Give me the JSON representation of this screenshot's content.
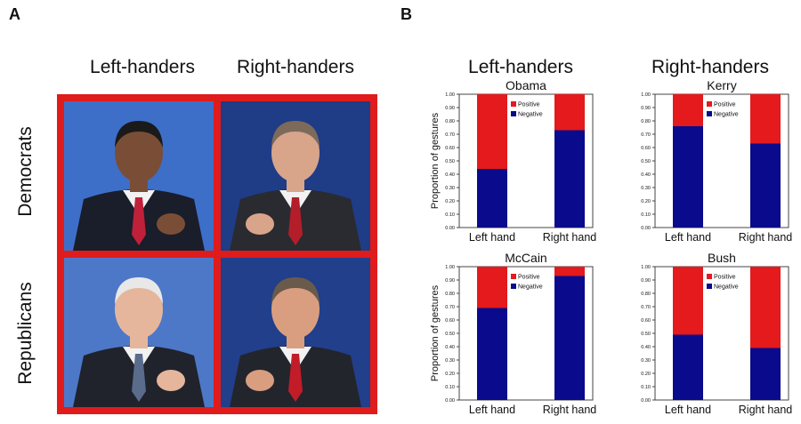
{
  "panel_a": {
    "letter": "A",
    "columns": [
      "Left-handers",
      "Right-handers"
    ],
    "rows": [
      "Democrats",
      "Republicans"
    ],
    "photos": [
      {
        "name": "photo-obama",
        "bg": "#3d6fc9",
        "suit": "#1a1d2a",
        "tie": "#c0203a",
        "skin": "#7a4e36",
        "hair": "#1a1a1a"
      },
      {
        "name": "photo-kerry",
        "bg": "#1f3c86",
        "suit": "#2a2b30",
        "tie": "#b31e2a",
        "skin": "#d8a58a",
        "hair": "#7d6a5a"
      },
      {
        "name": "photo-mccain",
        "bg": "#4d78c8",
        "suit": "#20232c",
        "tie": "#5a6b8c",
        "skin": "#e5b69c",
        "hair": "#e8e8e8"
      },
      {
        "name": "photo-bush",
        "bg": "#213f8a",
        "suit": "#23252d",
        "tie": "#c21c28",
        "skin": "#d99e80",
        "hair": "#6a5a4c"
      }
    ]
  },
  "panel_b": {
    "letter": "B",
    "columns": [
      "Left-handers",
      "Right-handers"
    ]
  },
  "colors": {
    "positive": "#e41a1c",
    "negative": "#0a0a8c",
    "frame": "#e01b1b"
  },
  "chart_data": [
    {
      "type": "bar",
      "stacked": true,
      "title": "Obama",
      "ylabel": "Proportion of gestures",
      "categories": [
        "Left hand",
        "Right hand"
      ],
      "series": [
        {
          "name": "Negative",
          "values": [
            0.44,
            0.73
          ]
        },
        {
          "name": "Positive",
          "values": [
            0.56,
            0.27
          ]
        }
      ],
      "ylim": [
        0,
        1
      ],
      "yticks": [
        "0.00",
        "0.10",
        "0.20",
        "0.30",
        "0.40",
        "0.50",
        "0.60",
        "0.70",
        "0.80",
        "0.90",
        "1.00"
      ],
      "legend": "top-right"
    },
    {
      "type": "bar",
      "stacked": true,
      "title": "Kerry",
      "ylabel": "",
      "categories": [
        "Left hand",
        "Right hand"
      ],
      "series": [
        {
          "name": "Negative",
          "values": [
            0.76,
            0.63
          ]
        },
        {
          "name": "Positive",
          "values": [
            0.24,
            0.37
          ]
        }
      ],
      "ylim": [
        0,
        1
      ],
      "yticks": [
        "0.00",
        "0.10",
        "0.20",
        "0.30",
        "0.40",
        "0.50",
        "0.60",
        "0.70",
        "0.80",
        "0.90",
        "1.00"
      ],
      "legend": "top-right"
    },
    {
      "type": "bar",
      "stacked": true,
      "title": "McCain",
      "ylabel": "Proportion of gestures",
      "categories": [
        "Left hand",
        "Right hand"
      ],
      "series": [
        {
          "name": "Negative",
          "values": [
            0.69,
            0.93
          ]
        },
        {
          "name": "Positive",
          "values": [
            0.31,
            0.07
          ]
        }
      ],
      "ylim": [
        0,
        1
      ],
      "yticks": [
        "0.00",
        "0.10",
        "0.20",
        "0.30",
        "0.40",
        "0.50",
        "0.60",
        "0.70",
        "0.80",
        "0.90",
        "1.00"
      ],
      "legend": "top-right"
    },
    {
      "type": "bar",
      "stacked": true,
      "title": "Bush",
      "ylabel": "",
      "categories": [
        "Left hand",
        "Right hand"
      ],
      "series": [
        {
          "name": "Negative",
          "values": [
            0.49,
            0.39
          ]
        },
        {
          "name": "Positive",
          "values": [
            0.51,
            0.61
          ]
        }
      ],
      "ylim": [
        0,
        1
      ],
      "yticks": [
        "0.00",
        "0.10",
        "0.20",
        "0.30",
        "0.40",
        "0.50",
        "0.60",
        "0.70",
        "0.80",
        "0.90",
        "1.00"
      ],
      "legend": "top-right"
    }
  ]
}
